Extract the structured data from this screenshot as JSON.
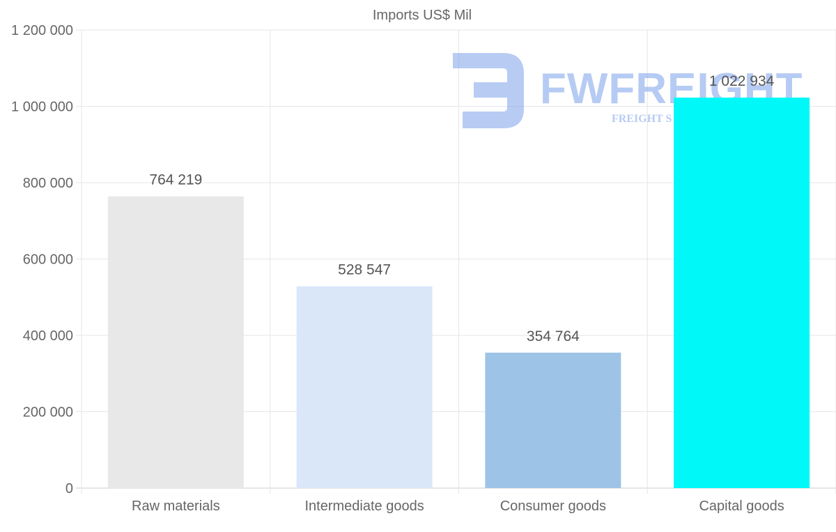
{
  "chart_data": {
    "type": "bar",
    "title": "Imports US$ Mil",
    "categories": [
      "Raw materials",
      "Intermediate goods",
      "Consumer goods",
      "Capital goods"
    ],
    "values": [
      764219,
      528547,
      354764,
      1022934
    ],
    "value_labels": [
      "764 219",
      "528 547",
      "354 764",
      "1 022 934"
    ],
    "bar_colors": [
      "#e8e8e8",
      "#d9e7f9",
      "#9dc3e6",
      "#00f8f8"
    ],
    "ylim": [
      0,
      1200000
    ],
    "yticks": [
      0,
      200000,
      400000,
      600000,
      800000,
      1000000,
      1200000
    ],
    "ytick_labels": [
      "0",
      "200 000",
      "400 000",
      "600 000",
      "800 000",
      "1 000 000",
      "1 200 000"
    ],
    "xlabel": "",
    "ylabel": "",
    "grid": true,
    "legend": "none"
  },
  "watermark": {
    "brand": "FWFREIGHT",
    "tagline": "FREIGHT S",
    "icon": "fw-logo-icon",
    "color": "#7ba1ea"
  }
}
